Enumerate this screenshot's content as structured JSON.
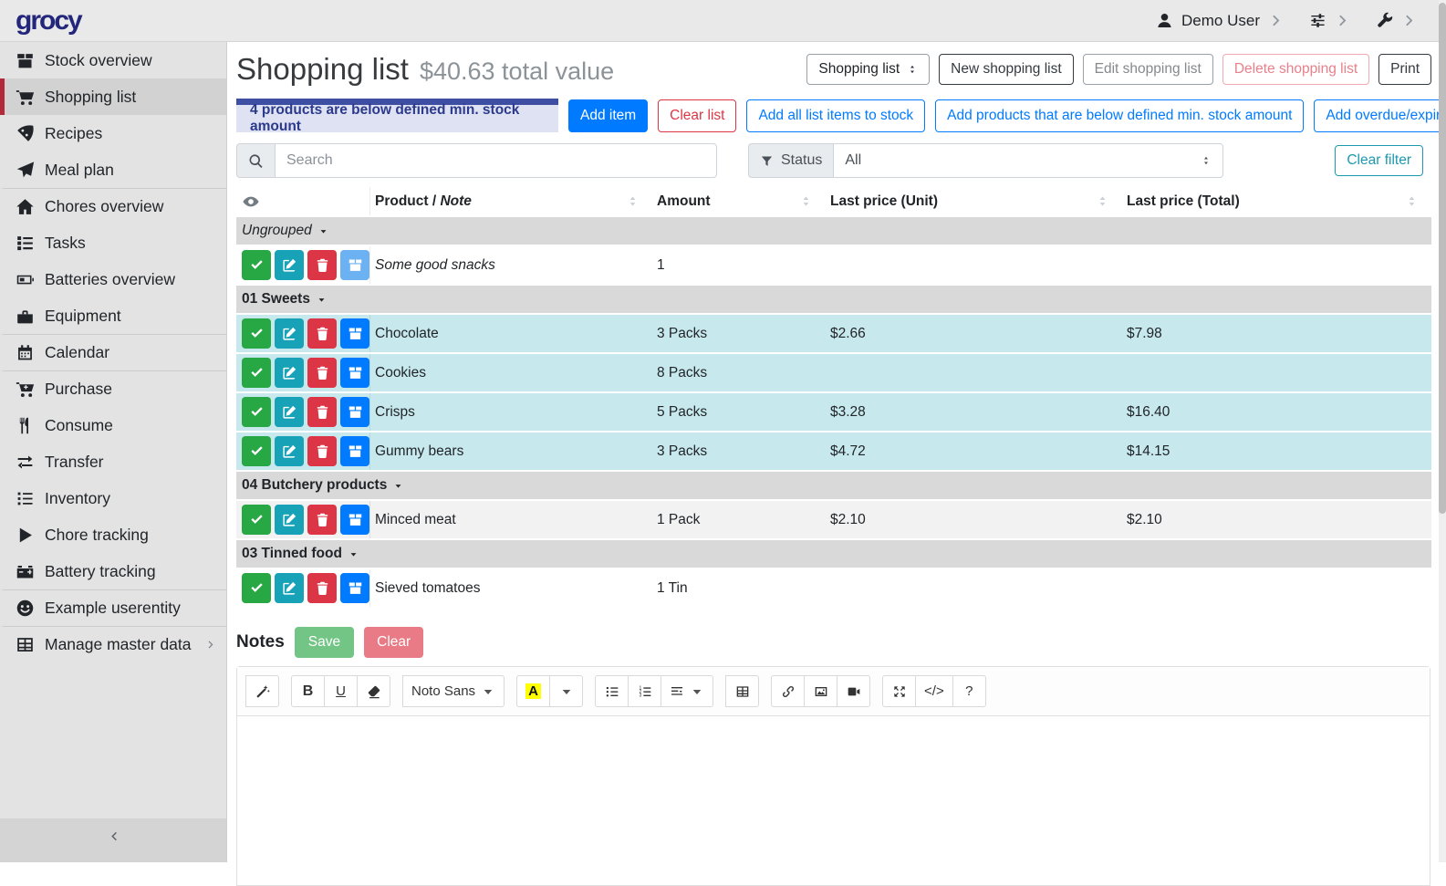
{
  "topbar": {
    "logo": "grocy",
    "user_label": "Demo User"
  },
  "sidebar": {
    "items": [
      {
        "label": "Stock overview",
        "icon": "stock-box-icon"
      },
      {
        "label": "Shopping list",
        "icon": "cart-icon",
        "active": true
      },
      {
        "label": "Recipes",
        "icon": "pizza-icon"
      },
      {
        "label": "Meal plan",
        "icon": "paper-plane-icon"
      },
      {
        "label": "Chores overview",
        "icon": "home-icon",
        "divider": true
      },
      {
        "label": "Tasks",
        "icon": "tasks-icon"
      },
      {
        "label": "Batteries overview",
        "icon": "battery-icon"
      },
      {
        "label": "Equipment",
        "icon": "toolbox-icon"
      },
      {
        "label": "Calendar",
        "icon": "calendar-icon",
        "divider": true
      },
      {
        "label": "Purchase",
        "icon": "cart-plus-icon",
        "divider": true
      },
      {
        "label": "Consume",
        "icon": "utensils-icon"
      },
      {
        "label": "Transfer",
        "icon": "exchange-icon"
      },
      {
        "label": "Inventory",
        "icon": "list-icon"
      },
      {
        "label": "Chore tracking",
        "icon": "play-icon"
      },
      {
        "label": "Battery tracking",
        "icon": "car-battery-icon"
      },
      {
        "label": "Example userentity",
        "icon": "smiley-icon",
        "divider": true
      },
      {
        "label": "Manage master data",
        "icon": "table-icon",
        "divider": true,
        "chevron": true
      }
    ]
  },
  "page": {
    "title": "Shopping list",
    "subtitle": "$40.63 total value"
  },
  "header_buttons": {
    "list_select": "Shopping list",
    "new": "New shopping list",
    "edit": "Edit shopping list",
    "delete": "Delete shopping list",
    "print": "Print"
  },
  "alert": {
    "text": "4 products are below defined min. stock amount"
  },
  "actions": [
    {
      "label": "Add item",
      "style": "solid-blue",
      "name": "add-item-button"
    },
    {
      "label": "Clear list",
      "style": "outline-red",
      "name": "clear-list-button"
    },
    {
      "label": "Add all list items to stock",
      "style": "outline-blue",
      "name": "add-all-list-items-to-stock-button"
    },
    {
      "label": "Add products that are below defined min. stock amount",
      "style": "outline-blue",
      "name": "add-products-below-min-stock-button"
    },
    {
      "label": "Add overdue/expired products",
      "style": "outline-blue",
      "name": "add-overdue-expired-products-button"
    }
  ],
  "filters": {
    "search_placeholder": "Search",
    "status_label": "Status",
    "status_value": "All",
    "clear_filter_label": "Clear filter"
  },
  "table": {
    "headers": {
      "product": "Product /",
      "note": "Note",
      "amount": "Amount",
      "unit": "Last price (Unit)",
      "total": "Last price (Total)"
    },
    "row_actions": [
      {
        "name": "mark-done-button",
        "icon": "check-icon",
        "color": "#28a745"
      },
      {
        "name": "edit-item-button",
        "icon": "edit-icon",
        "color": "#17a2b8"
      },
      {
        "name": "delete-item-button",
        "icon": "trash-icon",
        "color": "#dc3545"
      },
      {
        "name": "add-to-stock-button",
        "icon": "stock-box-icon",
        "color": "#007bff",
        "disabled_color": "#6cb2f3"
      }
    ],
    "groups": [
      {
        "name": "Ungrouped",
        "italic": true,
        "rows": [
          {
            "product": "Some good snacks",
            "is_note": true,
            "amount": "1",
            "unit_price": "",
            "total_price": "",
            "bg": "white",
            "stock_disabled": true
          }
        ]
      },
      {
        "name": "01 Sweets",
        "rows": [
          {
            "product": "Chocolate",
            "amount": "3 Packs",
            "unit_price": "$2.66",
            "total_price": "$7.98",
            "bg": "cyan"
          },
          {
            "product": "Cookies",
            "amount": "8 Packs",
            "unit_price": "",
            "total_price": "",
            "bg": "cyan"
          },
          {
            "product": "Crisps",
            "amount": "5 Packs",
            "unit_price": "$3.28",
            "total_price": "$16.40",
            "bg": "cyan"
          },
          {
            "product": "Gummy bears",
            "amount": "3 Packs",
            "unit_price": "$4.72",
            "total_price": "$14.15",
            "bg": "cyan"
          }
        ]
      },
      {
        "name": "04 Butchery products",
        "rows": [
          {
            "product": "Minced meat",
            "amount": "1 Pack",
            "unit_price": "$2.10",
            "total_price": "$2.10",
            "bg": "gray"
          }
        ]
      },
      {
        "name": "03 Tinned food",
        "rows": [
          {
            "product": "Sieved tomatoes",
            "amount": "1 Tin",
            "unit_price": "",
            "total_price": "",
            "bg": "white"
          }
        ]
      }
    ]
  },
  "notes": {
    "label": "Notes",
    "save": "Save",
    "clear": "Clear"
  },
  "editor": {
    "toolbar": [
      [
        {
          "name": "style-magic-button",
          "icon": "magic-icon"
        }
      ],
      [
        {
          "name": "bold-button",
          "label": "B",
          "kind": "bold"
        },
        {
          "name": "underline-button",
          "label": "U",
          "kind": "underline"
        },
        {
          "name": "clear-format-button",
          "icon": "eraser-icon"
        }
      ],
      [
        {
          "name": "font-family-select",
          "label": "Noto Sans",
          "caret": true
        }
      ],
      [
        {
          "name": "text-color-button",
          "label": "A",
          "kind": "highlight"
        },
        {
          "name": "text-color-dropdown",
          "caret": true
        }
      ],
      [
        {
          "name": "unordered-list-button",
          "icon": "unordered-list-icon"
        },
        {
          "name": "ordered-list-button",
          "icon": "ordered-list-icon"
        },
        {
          "name": "paragraph-style-button",
          "icon": "paragraph-icon",
          "caret": true
        }
      ],
      [
        {
          "name": "insert-table-button",
          "icon": "table-grid-icon"
        }
      ],
      [
        {
          "name": "insert-link-button",
          "icon": "link-icon"
        },
        {
          "name": "insert-picture-button",
          "icon": "picture-icon"
        },
        {
          "name": "insert-video-button",
          "icon": "video-icon"
        }
      ],
      [
        {
          "name": "fullscreen-button",
          "icon": "expand-icon"
        },
        {
          "name": "code-view-button",
          "label": "</>"
        },
        {
          "name": "help-button",
          "label": "?"
        }
      ]
    ]
  },
  "colors": {
    "primary": "#007bff",
    "danger": "#dc3545",
    "info": "#17a2b8",
    "success": "#28a745",
    "alert_bar": "#3e4ea3",
    "highlight_row": "#c7e9ee",
    "active_item_marker": "#b22a3a"
  }
}
